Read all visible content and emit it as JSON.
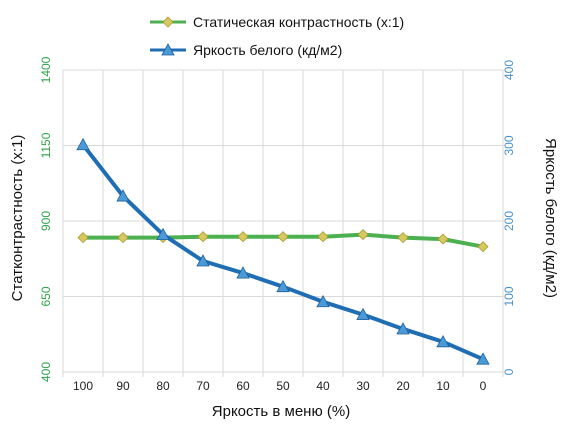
{
  "chart_data": {
    "type": "line",
    "x": [
      100,
      90,
      80,
      70,
      60,
      50,
      40,
      30,
      20,
      10,
      0
    ],
    "xlabel": "Яркость в меню (%)",
    "ylabel_left": "Статконтрастность   (x:1)",
    "ylabel_right": "Яркость белого (кд/м2)",
    "ylim_left": [
      400,
      1400
    ],
    "yticks_left": [
      400,
      650,
      900,
      1150,
      1400
    ],
    "ylim_right": [
      0,
      400
    ],
    "yticks_right": [
      0,
      100,
      200,
      300,
      400
    ],
    "grid": true,
    "legend_position": "top-center",
    "series": [
      {
        "name": "Статическая контрастность  (x:1)",
        "axis": "left",
        "color": "#4cb050",
        "marker": "diamond",
        "marker_color": "#d8c860",
        "values": [
          845,
          845,
          845,
          848,
          848,
          848,
          848,
          855,
          845,
          840,
          815
        ]
      },
      {
        "name": "Яркость белого (кд/м2)",
        "axis": "right",
        "color": "#1f6eb4",
        "marker": "triangle",
        "marker_color": "#4a9ad8",
        "values": [
          301,
          233,
          182,
          147,
          131,
          113,
          93,
          76,
          57,
          40,
          17
        ]
      }
    ]
  }
}
